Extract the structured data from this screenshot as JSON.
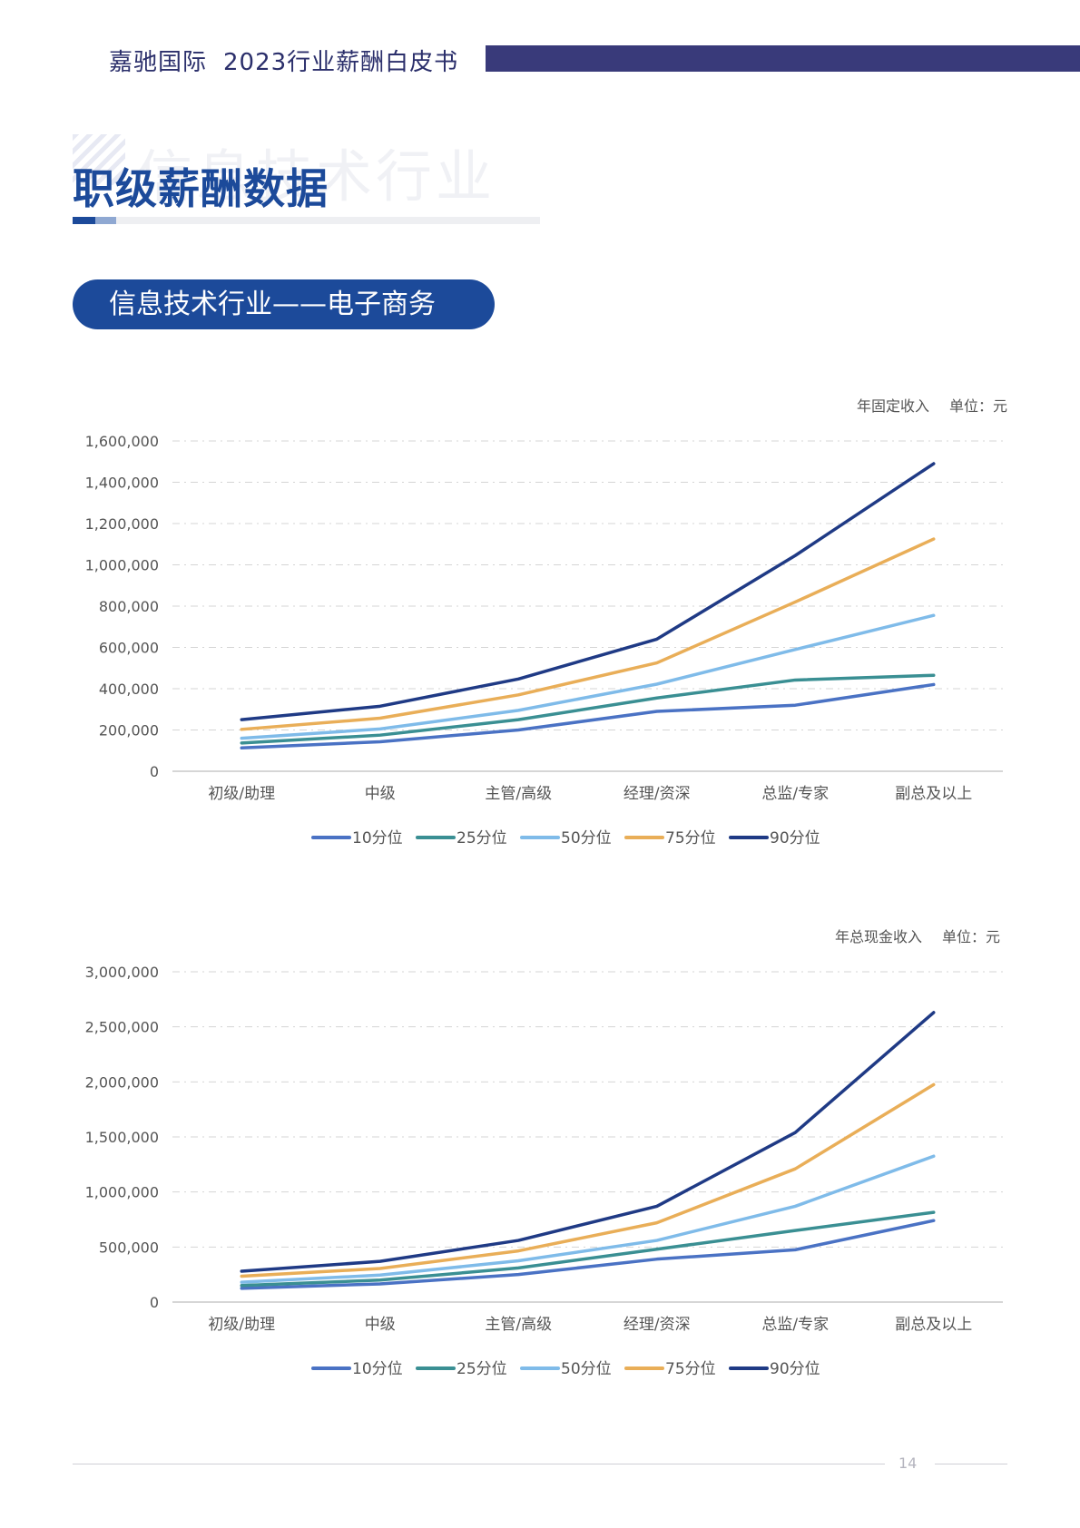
{
  "header": {
    "brand": "嘉驰国际",
    "report": "2023行业薪酬白皮书"
  },
  "watermark_text": "信息技术行业",
  "page_title": "职级薪酬数据",
  "section_label": "信息技术行业——电子商务",
  "page_number": "14",
  "colors": {
    "p10": "#4a72c4",
    "p25": "#3a8f93",
    "p50": "#7fbbe9",
    "p75": "#e9ae58",
    "p90": "#1f3a85",
    "accent": "#1c4a9a",
    "header_bar": "#393a7a"
  },
  "chart_data": [
    {
      "type": "line",
      "unit_note": "年固定收入",
      "unit_label": "单位：元",
      "categories": [
        "初级/助理",
        "中级",
        "主管/高级",
        "经理/资深",
        "总监/专家",
        "副总及以上"
      ],
      "ylim": [
        0,
        1600000
      ],
      "yticks": [
        0,
        200000,
        400000,
        600000,
        800000,
        1000000,
        1200000,
        1400000,
        1600000
      ],
      "ytick_labels": [
        "0",
        "200,000",
        "400,000",
        "600,000",
        "800,000",
        "1,000,000",
        "1,200,000",
        "1,400,000",
        "1,600,000"
      ],
      "grid": true,
      "legend_position": "bottom",
      "series": [
        {
          "name": "10分位",
          "color_key": "p10",
          "values": [
            113000,
            143000,
            200000,
            290000,
            320000,
            420000
          ]
        },
        {
          "name": "25分位",
          "color_key": "p25",
          "values": [
            137000,
            175000,
            250000,
            355000,
            442000,
            465000
          ]
        },
        {
          "name": "50分位",
          "color_key": "p50",
          "values": [
            160000,
            205000,
            295000,
            422000,
            590000,
            755000
          ]
        },
        {
          "name": "75分位",
          "color_key": "p75",
          "values": [
            203000,
            257000,
            370000,
            525000,
            820000,
            1125000
          ]
        },
        {
          "name": "90分位",
          "color_key": "p90",
          "values": [
            250000,
            315000,
            447000,
            640000,
            1045000,
            1490000
          ]
        }
      ]
    },
    {
      "type": "line",
      "unit_note": "年总现金收入",
      "unit_label": "单位：元",
      "categories": [
        "初级/助理",
        "中级",
        "主管/高级",
        "经理/资深",
        "总监/专家",
        "副总及以上"
      ],
      "ylim": [
        0,
        3000000
      ],
      "yticks": [
        0,
        500000,
        1000000,
        1500000,
        2000000,
        2500000,
        3000000
      ],
      "ytick_labels": [
        "0",
        "500,000",
        "1,000,000",
        "1,500,000",
        "2,000,000",
        "2,500,000",
        "3,000,000"
      ],
      "grid": true,
      "legend_position": "bottom",
      "series": [
        {
          "name": "10分位",
          "color_key": "p10",
          "values": [
            125000,
            165000,
            250000,
            390000,
            475000,
            740000
          ]
        },
        {
          "name": "25分位",
          "color_key": "p25",
          "values": [
            150000,
            200000,
            310000,
            480000,
            650000,
            815000
          ]
        },
        {
          "name": "50分位",
          "color_key": "p50",
          "values": [
            180000,
            245000,
            375000,
            560000,
            870000,
            1325000
          ]
        },
        {
          "name": "75分位",
          "color_key": "p75",
          "values": [
            235000,
            305000,
            465000,
            720000,
            1210000,
            1975000
          ]
        },
        {
          "name": "90分位",
          "color_key": "p90",
          "values": [
            280000,
            370000,
            560000,
            870000,
            1540000,
            2630000
          ]
        }
      ]
    }
  ]
}
